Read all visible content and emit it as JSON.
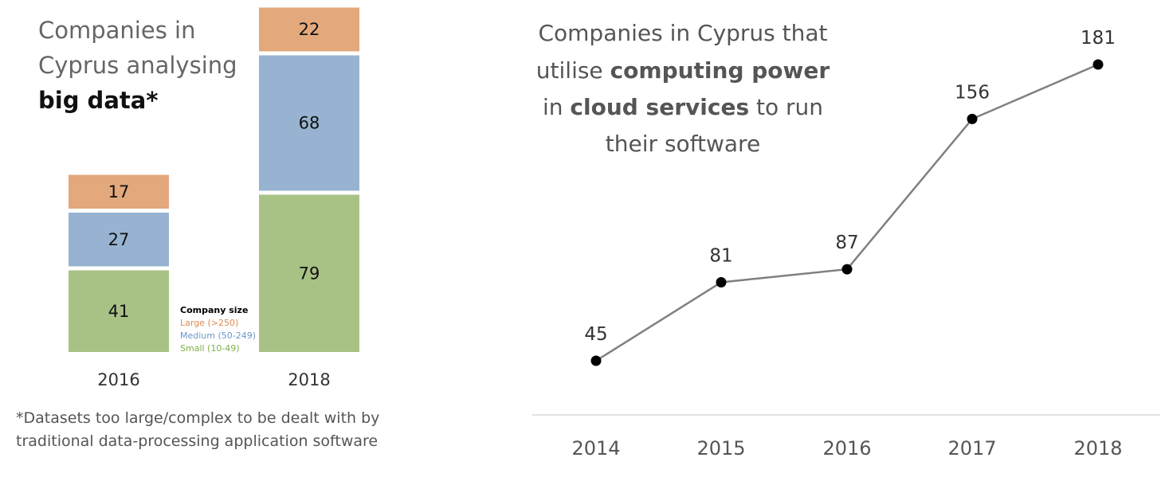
{
  "chart_data": [
    {
      "type": "bar",
      "stacked": true,
      "title_lines": [
        "Companies in",
        "Cyprus analysing",
        "big data*"
      ],
      "categories": [
        "2016",
        "2018"
      ],
      "series": [
        {
          "name": "Small (10-49)",
          "values": [
            41,
            79
          ],
          "color": "#a8c285"
        },
        {
          "name": "Medium (50-249)",
          "values": [
            27,
            68
          ],
          "color": "#97b3d1"
        },
        {
          "name": "Large (>250)",
          "values": [
            17,
            22
          ],
          "color": "#e3a87c"
        }
      ],
      "legend_title": "Company size",
      "legend_colors": {
        "large": "#e08a4e",
        "medium": "#6a98c9",
        "small": "#7fae4a"
      },
      "footnote_lines": [
        "*Datasets too large/complex to be dealt with by",
        "traditional data-processing application software"
      ]
    },
    {
      "type": "line",
      "title_lines": [
        {
          "parts": [
            {
              "text": "Companies in Cyprus that",
              "bold": false
            }
          ]
        },
        {
          "parts": [
            {
              "text": "utilise ",
              "bold": false
            },
            {
              "text": "computing power",
              "bold": true
            }
          ]
        },
        {
          "parts": [
            {
              "text": "in ",
              "bold": false
            },
            {
              "text": "cloud services",
              "bold": true
            },
            {
              "text": " to run",
              "bold": false
            }
          ]
        },
        {
          "parts": [
            {
              "text": "their software",
              "bold": false
            }
          ]
        }
      ],
      "x": [
        "2014",
        "2015",
        "2016",
        "2017",
        "2018"
      ],
      "values": [
        45,
        81,
        87,
        156,
        181
      ],
      "line_color": "#808080",
      "point_color": "#000000",
      "baseline_color": "#d9d9d9"
    }
  ]
}
